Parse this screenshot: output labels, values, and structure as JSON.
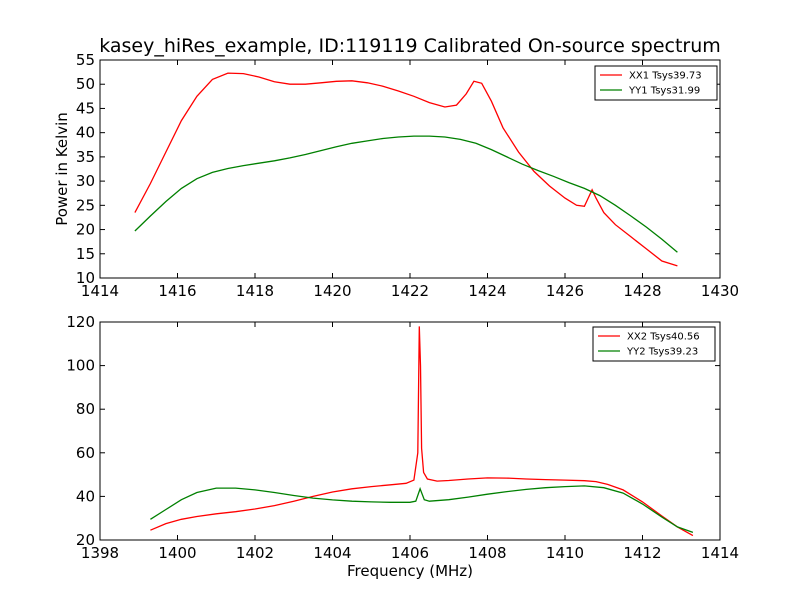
{
  "chart_data": [
    {
      "type": "line",
      "title": "kasey_hiRes_example, ID:119119 Calibrated On-source spectrum",
      "xlabel": "",
      "ylabel": "Power in Kelvin",
      "xlim": [
        1414,
        1430
      ],
      "ylim": [
        10,
        55
      ],
      "xticks": [
        1414,
        1416,
        1418,
        1420,
        1422,
        1424,
        1426,
        1428,
        1430
      ],
      "yticks": [
        10,
        15,
        20,
        25,
        30,
        35,
        40,
        45,
        50,
        55
      ],
      "grid": false,
      "legend": "top-right",
      "series": [
        {
          "name": "XX1 Tsys39.73",
          "color": "#ff0000",
          "x": [
            1414.9,
            1415.3,
            1415.7,
            1416.1,
            1416.5,
            1416.9,
            1417.3,
            1417.7,
            1418.1,
            1418.5,
            1418.9,
            1419.3,
            1419.7,
            1420.1,
            1420.5,
            1420.9,
            1421.3,
            1421.7,
            1422.1,
            1422.5,
            1422.9,
            1423.2,
            1423.45,
            1423.65,
            1423.85,
            1424.1,
            1424.4,
            1424.8,
            1425.2,
            1425.6,
            1426.0,
            1426.3,
            1426.5,
            1426.6,
            1426.7,
            1426.8,
            1427.0,
            1427.3,
            1427.7,
            1428.1,
            1428.5,
            1428.9
          ],
          "values": [
            23.5,
            29.5,
            36,
            42.5,
            47.5,
            51,
            52.3,
            52.2,
            51.5,
            50.5,
            50,
            50,
            50.3,
            50.6,
            50.7,
            50.3,
            49.6,
            48.6,
            47.5,
            46.2,
            45.3,
            45.7,
            48,
            50.6,
            50.2,
            46.5,
            41,
            36,
            32,
            29,
            26.5,
            25,
            24.8,
            26.5,
            28.2,
            26.5,
            23.5,
            21,
            18.5,
            16,
            13.5,
            12.5
          ]
        },
        {
          "name": "YY1 Tsys31.99",
          "color": "#008000",
          "x": [
            1414.9,
            1415.3,
            1415.7,
            1416.1,
            1416.5,
            1416.9,
            1417.3,
            1417.7,
            1418.1,
            1418.5,
            1418.9,
            1419.3,
            1419.7,
            1420.1,
            1420.5,
            1420.9,
            1421.3,
            1421.7,
            1422.1,
            1422.5,
            1422.9,
            1423.3,
            1423.7,
            1424.1,
            1424.5,
            1424.9,
            1425.3,
            1425.7,
            1426.1,
            1426.5,
            1426.9,
            1427.3,
            1427.7,
            1428.1,
            1428.5,
            1428.9
          ],
          "values": [
            19.7,
            22.8,
            25.8,
            28.5,
            30.5,
            31.8,
            32.6,
            33.2,
            33.7,
            34.2,
            34.8,
            35.5,
            36.3,
            37.1,
            37.8,
            38.3,
            38.8,
            39.1,
            39.3,
            39.3,
            39.1,
            38.6,
            37.8,
            36.5,
            35,
            33.5,
            32.2,
            31,
            29.7,
            28.5,
            27,
            25,
            22.8,
            20.5,
            18,
            15.3
          ]
        }
      ]
    },
    {
      "type": "line",
      "title": "",
      "xlabel": "Frequency (MHz)",
      "ylabel": "",
      "xlim": [
        1398,
        1414
      ],
      "ylim": [
        20,
        120
      ],
      "xticks": [
        1398,
        1400,
        1402,
        1404,
        1406,
        1408,
        1410,
        1412,
        1414
      ],
      "yticks": [
        20,
        40,
        60,
        80,
        100,
        120
      ],
      "grid": false,
      "legend": "top-right",
      "series": [
        {
          "name": "XX2 Tsys40.56",
          "color": "#ff0000",
          "x": [
            1399.3,
            1399.7,
            1400.1,
            1400.5,
            1401,
            1401.5,
            1402,
            1402.5,
            1403,
            1403.5,
            1404,
            1404.5,
            1405,
            1405.5,
            1405.9,
            1406.1,
            1406.2,
            1406.24,
            1406.27,
            1406.3,
            1406.35,
            1406.45,
            1406.7,
            1407,
            1407.5,
            1408,
            1408.5,
            1409,
            1409.5,
            1410,
            1410.5,
            1410.8,
            1411.1,
            1411.5,
            1412,
            1412.5,
            1412.9,
            1413.3
          ],
          "values": [
            24.5,
            27.5,
            29.5,
            30.8,
            32,
            33,
            34.2,
            35.8,
            37.8,
            40,
            42,
            43.5,
            44.5,
            45.3,
            46,
            47.5,
            60,
            118,
            100,
            62,
            51,
            48,
            47,
            47.3,
            48,
            48.5,
            48.4,
            48,
            47.7,
            47.5,
            47.2,
            46.8,
            45.5,
            43,
            37.5,
            31,
            26,
            22
          ]
        },
        {
          "name": "YY2 Tsys39.23",
          "color": "#008000",
          "x": [
            1399.3,
            1399.7,
            1400.1,
            1400.5,
            1401,
            1401.5,
            1402,
            1402.5,
            1403,
            1403.5,
            1404,
            1404.5,
            1405,
            1405.5,
            1406,
            1406.15,
            1406.26,
            1406.37,
            1406.5,
            1407,
            1407.5,
            1408,
            1408.5,
            1409,
            1409.5,
            1410,
            1410.5,
            1411,
            1411.5,
            1412,
            1412.5,
            1412.9,
            1413.3
          ],
          "values": [
            29.5,
            34,
            38.5,
            41.8,
            43.8,
            43.8,
            43,
            41.8,
            40.4,
            39.2,
            38.4,
            37.8,
            37.5,
            37.3,
            37.3,
            37.8,
            43.5,
            38.5,
            37.8,
            38.5,
            39.7,
            41,
            42.2,
            43.2,
            44,
            44.5,
            44.8,
            44,
            41.5,
            36.5,
            30.5,
            26,
            23.5
          ]
        }
      ]
    }
  ]
}
